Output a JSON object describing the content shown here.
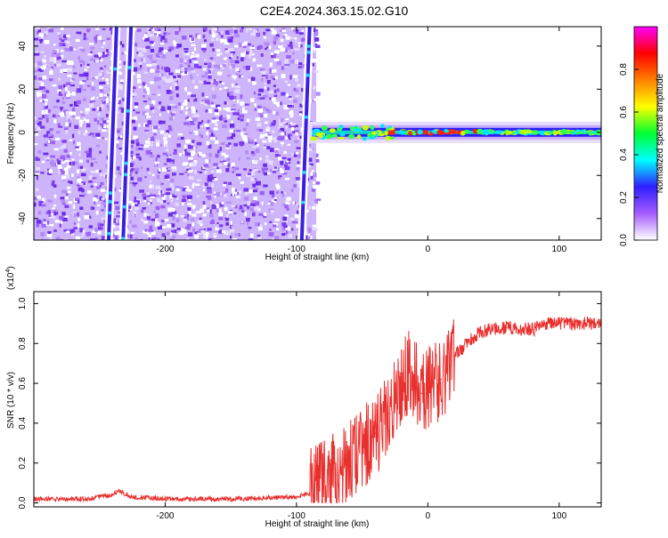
{
  "figure": {
    "title": "C2E4.2024.363.15.02.G10"
  },
  "colors": {
    "series_line": "#e8302e",
    "signal_blue": "#3a1fe0",
    "noise_purple": "#8a55f0",
    "axis": "#000000"
  },
  "chart_data": [
    {
      "type": "heatmap",
      "xlabel": "Height of straight line (km)",
      "ylabel": "Frequency (Hz)",
      "xlim": [
        -300,
        132
      ],
      "ylim": [
        -50,
        49
      ],
      "xticks": [
        -200,
        -100,
        0,
        100
      ],
      "xtick_labels": [
        "-200",
        "-100",
        "0",
        "100"
      ],
      "yticks": [
        -40,
        -20,
        0,
        20,
        40
      ],
      "ytick_labels": [
        "-40",
        "-20",
        "0",
        "20",
        "40"
      ],
      "noise_region_x": [
        -300,
        -85
      ],
      "signal_track": {
        "x": [
          -88,
          -60,
          -40,
          -20,
          0,
          20,
          60,
          100,
          132
        ],
        "y": [
          0,
          0,
          0,
          0,
          0,
          0,
          0,
          0,
          0
        ]
      },
      "aliased_lines": [
        {
          "x": [
            -243,
            -237
          ],
          "y": [
            -50,
            49
          ]
        },
        {
          "x": [
            -232,
            -226
          ],
          "y": [
            -50,
            49
          ]
        },
        {
          "x": [
            -96,
            -90
          ],
          "y": [
            -50,
            49
          ]
        }
      ],
      "colorbar": {
        "label": "Normalized spectral amplitude",
        "range": [
          0,
          1
        ],
        "ticks": [
          0,
          0.2,
          0.4,
          0.6,
          0.8
        ],
        "tick_labels": [
          "0.0",
          "0.2",
          "0.4",
          "0.6",
          "0.8"
        ],
        "colors": [
          "#ffffff",
          "#a65cff",
          "#2d1fff",
          "#00ffff",
          "#00ff30",
          "#ffff00",
          "#ff8000",
          "#ff0000",
          "#ff00ff"
        ]
      },
      "grid": false
    },
    {
      "type": "line",
      "xlabel": "Height of straight line (km)",
      "ylabel": "SNR (10 * v/v)",
      "y_multiplier": "(x10",
      "y_multiplier_exp": "4",
      "y_multiplier_close": ")",
      "xlim": [
        -300,
        132
      ],
      "ylim": [
        -0.02,
        1.06
      ],
      "xticks": [
        -200,
        -100,
        0,
        100
      ],
      "xtick_labels": [
        "-200",
        "-100",
        "0",
        "100"
      ],
      "yticks": [
        0,
        0.2,
        0.4,
        0.6,
        0.8,
        1.0
      ],
      "ytick_labels": [
        "0.0",
        "0.2",
        "0.4",
        "0.6",
        "0.8",
        "1.0"
      ],
      "series": [
        {
          "x": [
            -300,
            -260,
            -240,
            -235,
            -225,
            -200,
            -150,
            -100,
            -90,
            -80,
            -70,
            -60,
            -50,
            -40,
            -30,
            -25,
            -20,
            -15,
            -10,
            -5,
            0,
            10,
            20,
            30,
            40,
            60,
            80,
            90,
            100,
            120,
            132
          ],
          "y": [
            0.02,
            0.02,
            0.04,
            0.06,
            0.03,
            0.02,
            0.02,
            0.03,
            0.05,
            0.12,
            0.14,
            0.22,
            0.25,
            0.35,
            0.45,
            0.55,
            0.6,
            0.65,
            0.62,
            0.55,
            0.58,
            0.62,
            0.74,
            0.8,
            0.86,
            0.88,
            0.87,
            0.9,
            0.9,
            0.9,
            0.9
          ]
        }
      ],
      "grid": false
    }
  ]
}
